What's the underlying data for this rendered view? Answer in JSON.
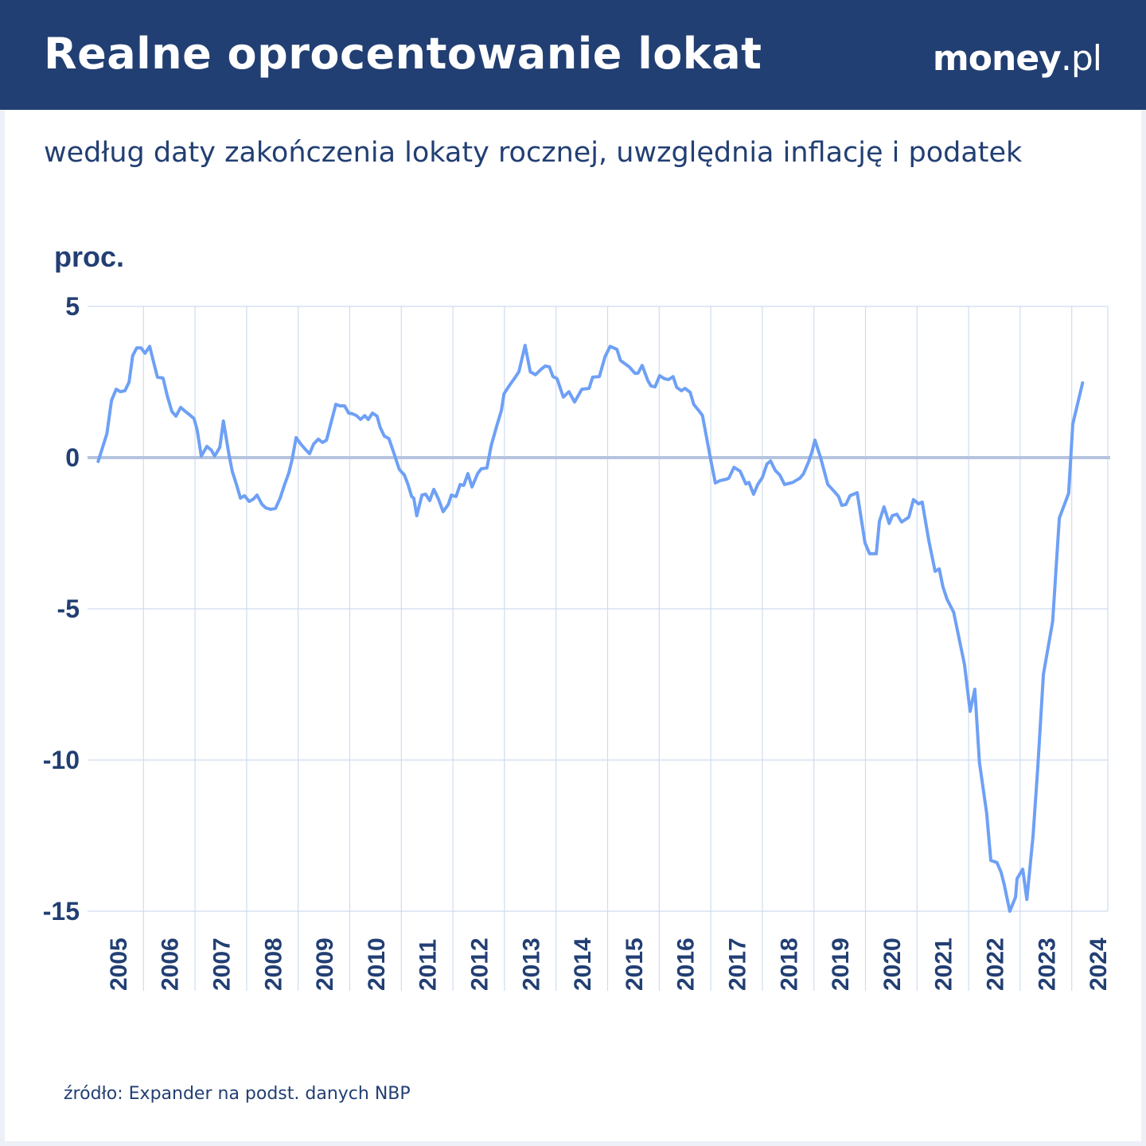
{
  "header": {
    "title": "Realne oprocentowanie lokat",
    "logo_main": "money",
    "logo_suffix": ".pl"
  },
  "subtitle": "według daty zakończenia lokaty rocznej, uwzględnia inflację i podatek",
  "source": "źródło: Expander na podst. danych NBP",
  "colors": {
    "header": "#223f73",
    "line": "#6ea0f5",
    "zero_line": "#b5c4df",
    "grid": "#cfdcef",
    "text": "#223f73"
  },
  "chart_data": {
    "type": "line",
    "title": "Realne oprocentowanie lokat",
    "ylabel": "proc.",
    "xlabel": "",
    "ylim": [
      -15,
      5
    ],
    "yticks": [
      "5",
      "0",
      "-5",
      "-10",
      "-15"
    ],
    "ytick_values": [
      5,
      0,
      -5,
      -10,
      -15
    ],
    "xlim": [
      2005,
      2025
    ],
    "xticks": [
      "2005",
      "2006",
      "2007",
      "2008",
      "2009",
      "2010",
      "2011",
      "2012",
      "2013",
      "2014",
      "2015",
      "2016",
      "2017",
      "2018",
      "2019",
      "2020",
      "2021",
      "2022",
      "2023",
      "2024"
    ],
    "grid": true,
    "series": [
      {
        "points": [
          [
            2005.12,
            -0.13
          ],
          [
            2005.29,
            0.79
          ],
          [
            2005.38,
            1.89
          ],
          [
            2005.47,
            2.26
          ],
          [
            2005.55,
            2.18
          ],
          [
            2005.64,
            2.21
          ],
          [
            2005.72,
            2.5
          ],
          [
            2005.79,
            3.37
          ],
          [
            2005.87,
            3.63
          ],
          [
            2005.95,
            3.63
          ],
          [
            2006.03,
            3.45
          ],
          [
            2006.12,
            3.68
          ],
          [
            2006.2,
            3.13
          ],
          [
            2006.27,
            2.66
          ],
          [
            2006.38,
            2.63
          ],
          [
            2006.46,
            2.05
          ],
          [
            2006.55,
            1.53
          ],
          [
            2006.63,
            1.37
          ],
          [
            2006.72,
            1.66
          ],
          [
            2006.81,
            1.53
          ],
          [
            2006.89,
            1.42
          ],
          [
            2006.98,
            1.29
          ],
          [
            2007.04,
            0.92
          ],
          [
            2007.12,
            0.05
          ],
          [
            2007.23,
            0.37
          ],
          [
            2007.32,
            0.24
          ],
          [
            2007.38,
            0.05
          ],
          [
            2007.48,
            0.34
          ],
          [
            2007.55,
            1.21
          ],
          [
            2007.65,
            0.18
          ],
          [
            2007.72,
            -0.45
          ],
          [
            2007.8,
            -0.87
          ],
          [
            2007.88,
            -1.34
          ],
          [
            2007.96,
            -1.26
          ],
          [
            2008.05,
            -1.45
          ],
          [
            2008.13,
            -1.37
          ],
          [
            2008.2,
            -1.24
          ],
          [
            2008.3,
            -1.55
          ],
          [
            2008.37,
            -1.66
          ],
          [
            2008.46,
            -1.71
          ],
          [
            2008.56,
            -1.68
          ],
          [
            2008.65,
            -1.34
          ],
          [
            2008.73,
            -0.92
          ],
          [
            2008.82,
            -0.5
          ],
          [
            2008.88,
            -0.08
          ],
          [
            2008.96,
            0.66
          ],
          [
            2009.05,
            0.45
          ],
          [
            2009.13,
            0.29
          ],
          [
            2009.22,
            0.13
          ],
          [
            2009.3,
            0.45
          ],
          [
            2009.39,
            0.61
          ],
          [
            2009.47,
            0.5
          ],
          [
            2009.55,
            0.58
          ],
          [
            2009.64,
            1.18
          ],
          [
            2009.73,
            1.76
          ],
          [
            2009.81,
            1.71
          ],
          [
            2009.9,
            1.71
          ],
          [
            2009.98,
            1.47
          ],
          [
            2010.05,
            1.45
          ],
          [
            2010.13,
            1.39
          ],
          [
            2010.21,
            1.26
          ],
          [
            2010.29,
            1.39
          ],
          [
            2010.36,
            1.26
          ],
          [
            2010.44,
            1.47
          ],
          [
            2010.53,
            1.37
          ],
          [
            2010.59,
            1.0
          ],
          [
            2010.67,
            0.71
          ],
          [
            2010.76,
            0.63
          ],
          [
            2010.86,
            0.13
          ],
          [
            2010.96,
            -0.39
          ],
          [
            2011.06,
            -0.58
          ],
          [
            2011.13,
            -0.89
          ],
          [
            2011.2,
            -1.29
          ],
          [
            2011.24,
            -1.34
          ],
          [
            2011.3,
            -1.92
          ],
          [
            2011.4,
            -1.24
          ],
          [
            2011.47,
            -1.21
          ],
          [
            2011.55,
            -1.42
          ],
          [
            2011.63,
            -1.05
          ],
          [
            2011.72,
            -1.37
          ],
          [
            2011.81,
            -1.79
          ],
          [
            2011.91,
            -1.55
          ],
          [
            2011.97,
            -1.24
          ],
          [
            2012.06,
            -1.29
          ],
          [
            2012.14,
            -0.89
          ],
          [
            2012.21,
            -0.92
          ],
          [
            2012.29,
            -0.53
          ],
          [
            2012.37,
            -0.97
          ],
          [
            2012.48,
            -0.53
          ],
          [
            2012.55,
            -0.37
          ],
          [
            2012.66,
            -0.34
          ],
          [
            2012.74,
            0.39
          ],
          [
            2012.85,
            1.05
          ],
          [
            2012.94,
            1.55
          ],
          [
            2012.99,
            2.11
          ],
          [
            2013.09,
            2.37
          ],
          [
            2013.19,
            2.61
          ],
          [
            2013.28,
            2.84
          ],
          [
            2013.4,
            3.71
          ],
          [
            2013.5,
            2.84
          ],
          [
            2013.6,
            2.74
          ],
          [
            2013.71,
            2.92
          ],
          [
            2013.79,
            3.03
          ],
          [
            2013.87,
            3.0
          ],
          [
            2013.94,
            2.68
          ],
          [
            2014.02,
            2.61
          ],
          [
            2014.14,
            2.0
          ],
          [
            2014.25,
            2.18
          ],
          [
            2014.36,
            1.84
          ],
          [
            2014.5,
            2.26
          ],
          [
            2014.64,
            2.29
          ],
          [
            2014.71,
            2.66
          ],
          [
            2014.84,
            2.68
          ],
          [
            2014.95,
            3.34
          ],
          [
            2015.05,
            3.68
          ],
          [
            2015.18,
            3.58
          ],
          [
            2015.25,
            3.21
          ],
          [
            2015.42,
            3.0
          ],
          [
            2015.53,
            2.79
          ],
          [
            2015.59,
            2.79
          ],
          [
            2015.67,
            3.05
          ],
          [
            2015.78,
            2.55
          ],
          [
            2015.84,
            2.37
          ],
          [
            2015.92,
            2.34
          ],
          [
            2016.01,
            2.71
          ],
          [
            2016.1,
            2.61
          ],
          [
            2016.18,
            2.58
          ],
          [
            2016.27,
            2.68
          ],
          [
            2016.34,
            2.32
          ],
          [
            2016.43,
            2.21
          ],
          [
            2016.5,
            2.29
          ],
          [
            2016.6,
            2.16
          ],
          [
            2016.67,
            1.76
          ],
          [
            2016.77,
            1.55
          ],
          [
            2016.84,
            1.39
          ],
          [
            2017.0,
            -0.08
          ],
          [
            2017.09,
            -0.84
          ],
          [
            2017.18,
            -0.76
          ],
          [
            2017.31,
            -0.71
          ],
          [
            2017.35,
            -0.68
          ],
          [
            2017.45,
            -0.32
          ],
          [
            2017.57,
            -0.45
          ],
          [
            2017.68,
            -0.87
          ],
          [
            2017.74,
            -0.82
          ],
          [
            2017.83,
            -1.21
          ],
          [
            2017.91,
            -0.89
          ],
          [
            2018.0,
            -0.66
          ],
          [
            2018.09,
            -0.21
          ],
          [
            2018.16,
            -0.11
          ],
          [
            2018.25,
            -0.42
          ],
          [
            2018.34,
            -0.58
          ],
          [
            2018.43,
            -0.89
          ],
          [
            2018.59,
            -0.82
          ],
          [
            2018.73,
            -0.68
          ],
          [
            2018.8,
            -0.53
          ],
          [
            2018.9,
            -0.13
          ],
          [
            2018.96,
            0.18
          ],
          [
            2019.02,
            0.58
          ],
          [
            2019.13,
            0.0
          ],
          [
            2019.27,
            -0.89
          ],
          [
            2019.39,
            -1.11
          ],
          [
            2019.48,
            -1.29
          ],
          [
            2019.54,
            -1.58
          ],
          [
            2019.62,
            -1.55
          ],
          [
            2019.7,
            -1.26
          ],
          [
            2019.84,
            -1.16
          ],
          [
            2019.99,
            -2.82
          ],
          [
            2020.08,
            -3.18
          ],
          [
            2020.21,
            -3.18
          ],
          [
            2020.27,
            -2.11
          ],
          [
            2020.36,
            -1.63
          ],
          [
            2020.46,
            -2.18
          ],
          [
            2020.52,
            -1.92
          ],
          [
            2020.61,
            -1.87
          ],
          [
            2020.7,
            -2.13
          ],
          [
            2020.84,
            -1.97
          ],
          [
            2020.93,
            -1.39
          ],
          [
            2021.03,
            -1.53
          ],
          [
            2021.1,
            -1.47
          ],
          [
            2021.23,
            -2.76
          ],
          [
            2021.35,
            -3.76
          ],
          [
            2021.43,
            -3.68
          ],
          [
            2021.5,
            -4.26
          ],
          [
            2021.58,
            -4.68
          ],
          [
            2021.71,
            -5.11
          ],
          [
            2021.92,
            -6.84
          ],
          [
            2022.03,
            -8.39
          ],
          [
            2022.12,
            -7.66
          ],
          [
            2022.21,
            -10.08
          ],
          [
            2022.35,
            -11.76
          ],
          [
            2022.43,
            -13.32
          ],
          [
            2022.55,
            -13.39
          ],
          [
            2022.63,
            -13.71
          ],
          [
            2022.69,
            -14.11
          ],
          [
            2022.75,
            -14.61
          ],
          [
            2022.8,
            -15.0
          ],
          [
            2022.91,
            -14.53
          ],
          [
            2022.94,
            -13.92
          ],
          [
            2023.05,
            -13.61
          ],
          [
            2023.13,
            -14.61
          ],
          [
            2023.25,
            -12.5
          ],
          [
            2023.34,
            -10.29
          ],
          [
            2023.45,
            -7.16
          ],
          [
            2023.63,
            -5.42
          ],
          [
            2023.76,
            -2.0
          ],
          [
            2023.94,
            -1.18
          ],
          [
            2024.02,
            1.11
          ],
          [
            2024.21,
            2.47
          ]
        ]
      }
    ]
  }
}
